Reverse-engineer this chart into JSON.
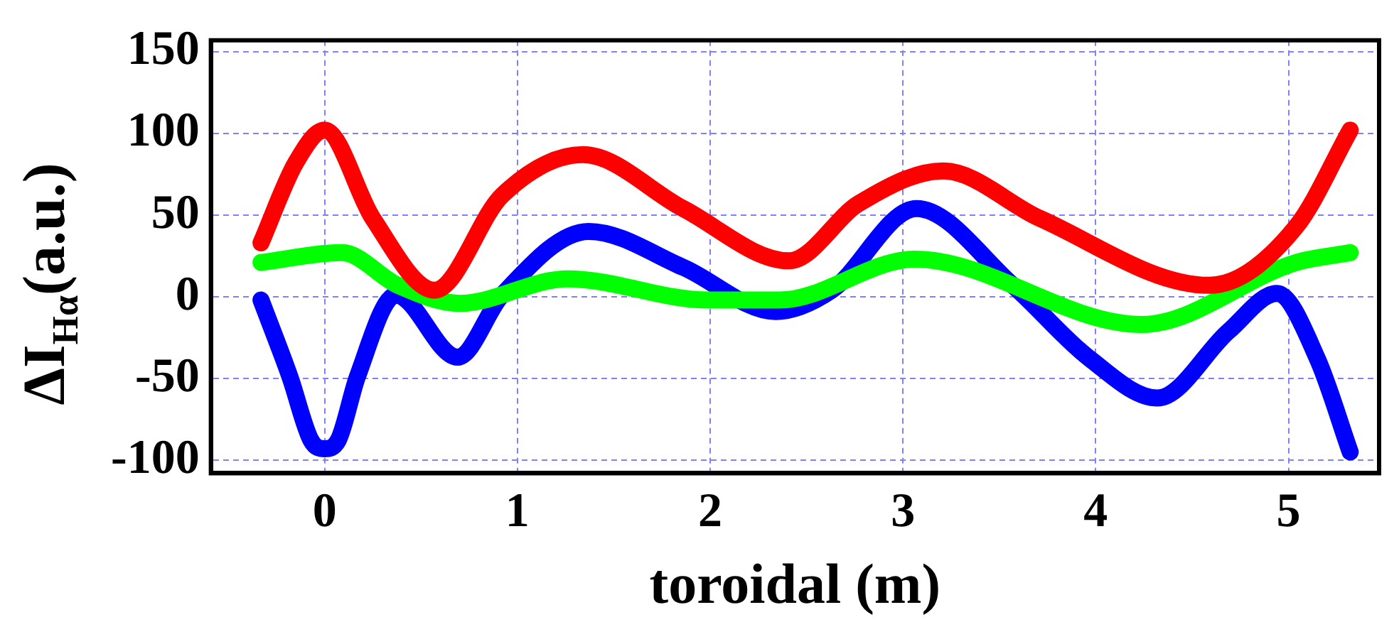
{
  "chart_data": {
    "type": "line",
    "xlabel": "toroidal (m)",
    "ylabel": "ΔI$_{Hα}$(a.u.)",
    "xlim": [
      -0.59,
      5.47
    ],
    "xticks": [
      0,
      1,
      2,
      3,
      4,
      5
    ],
    "ylim": [
      -108,
      157
    ],
    "yticks": [
      -100,
      -50,
      0,
      50,
      100,
      150
    ],
    "grid": true,
    "legend": false,
    "marker": "none",
    "line_style": "solid",
    "series": [
      {
        "color": "#ff0000",
        "x": [
          -0.33,
          -0.15,
          0,
          0.25,
          0.57,
          0.92,
          1.34,
          1.86,
          2.41,
          2.77,
          3.21,
          3.71,
          4.59,
          5.04,
          5.32
        ],
        "values": [
          33,
          82,
          102,
          48,
          4,
          62,
          87,
          54,
          22,
          57,
          77,
          48,
          7,
          43,
          102
        ]
      },
      {
        "color": "#00ff00",
        "x": [
          -0.33,
          0.09,
          0.38,
          0.7,
          1.26,
          1.99,
          2.36,
          3.06,
          4.24,
          5.04,
          5.32
        ],
        "values": [
          21,
          27,
          7,
          -4,
          11,
          -2,
          -2,
          23,
          -17,
          21,
          27
        ]
      },
      {
        "color": "#0000ff",
        "x": [
          -0.33,
          -0.18,
          -0.07,
          0,
          0.07,
          0.17,
          0.37,
          0.69,
          0.92,
          1.37,
          1.86,
          2.34,
          2.63,
          3.07,
          3.57,
          3.97,
          4.32,
          4.69,
          4.94,
          5.15,
          5.32
        ],
        "values": [
          -2,
          -49,
          -88,
          -93,
          -88,
          -49,
          1,
          -37,
          1,
          40,
          18,
          -9,
          4,
          54,
          7,
          -38,
          -62,
          -21,
          2,
          -38,
          -95
        ]
      }
    ]
  }
}
